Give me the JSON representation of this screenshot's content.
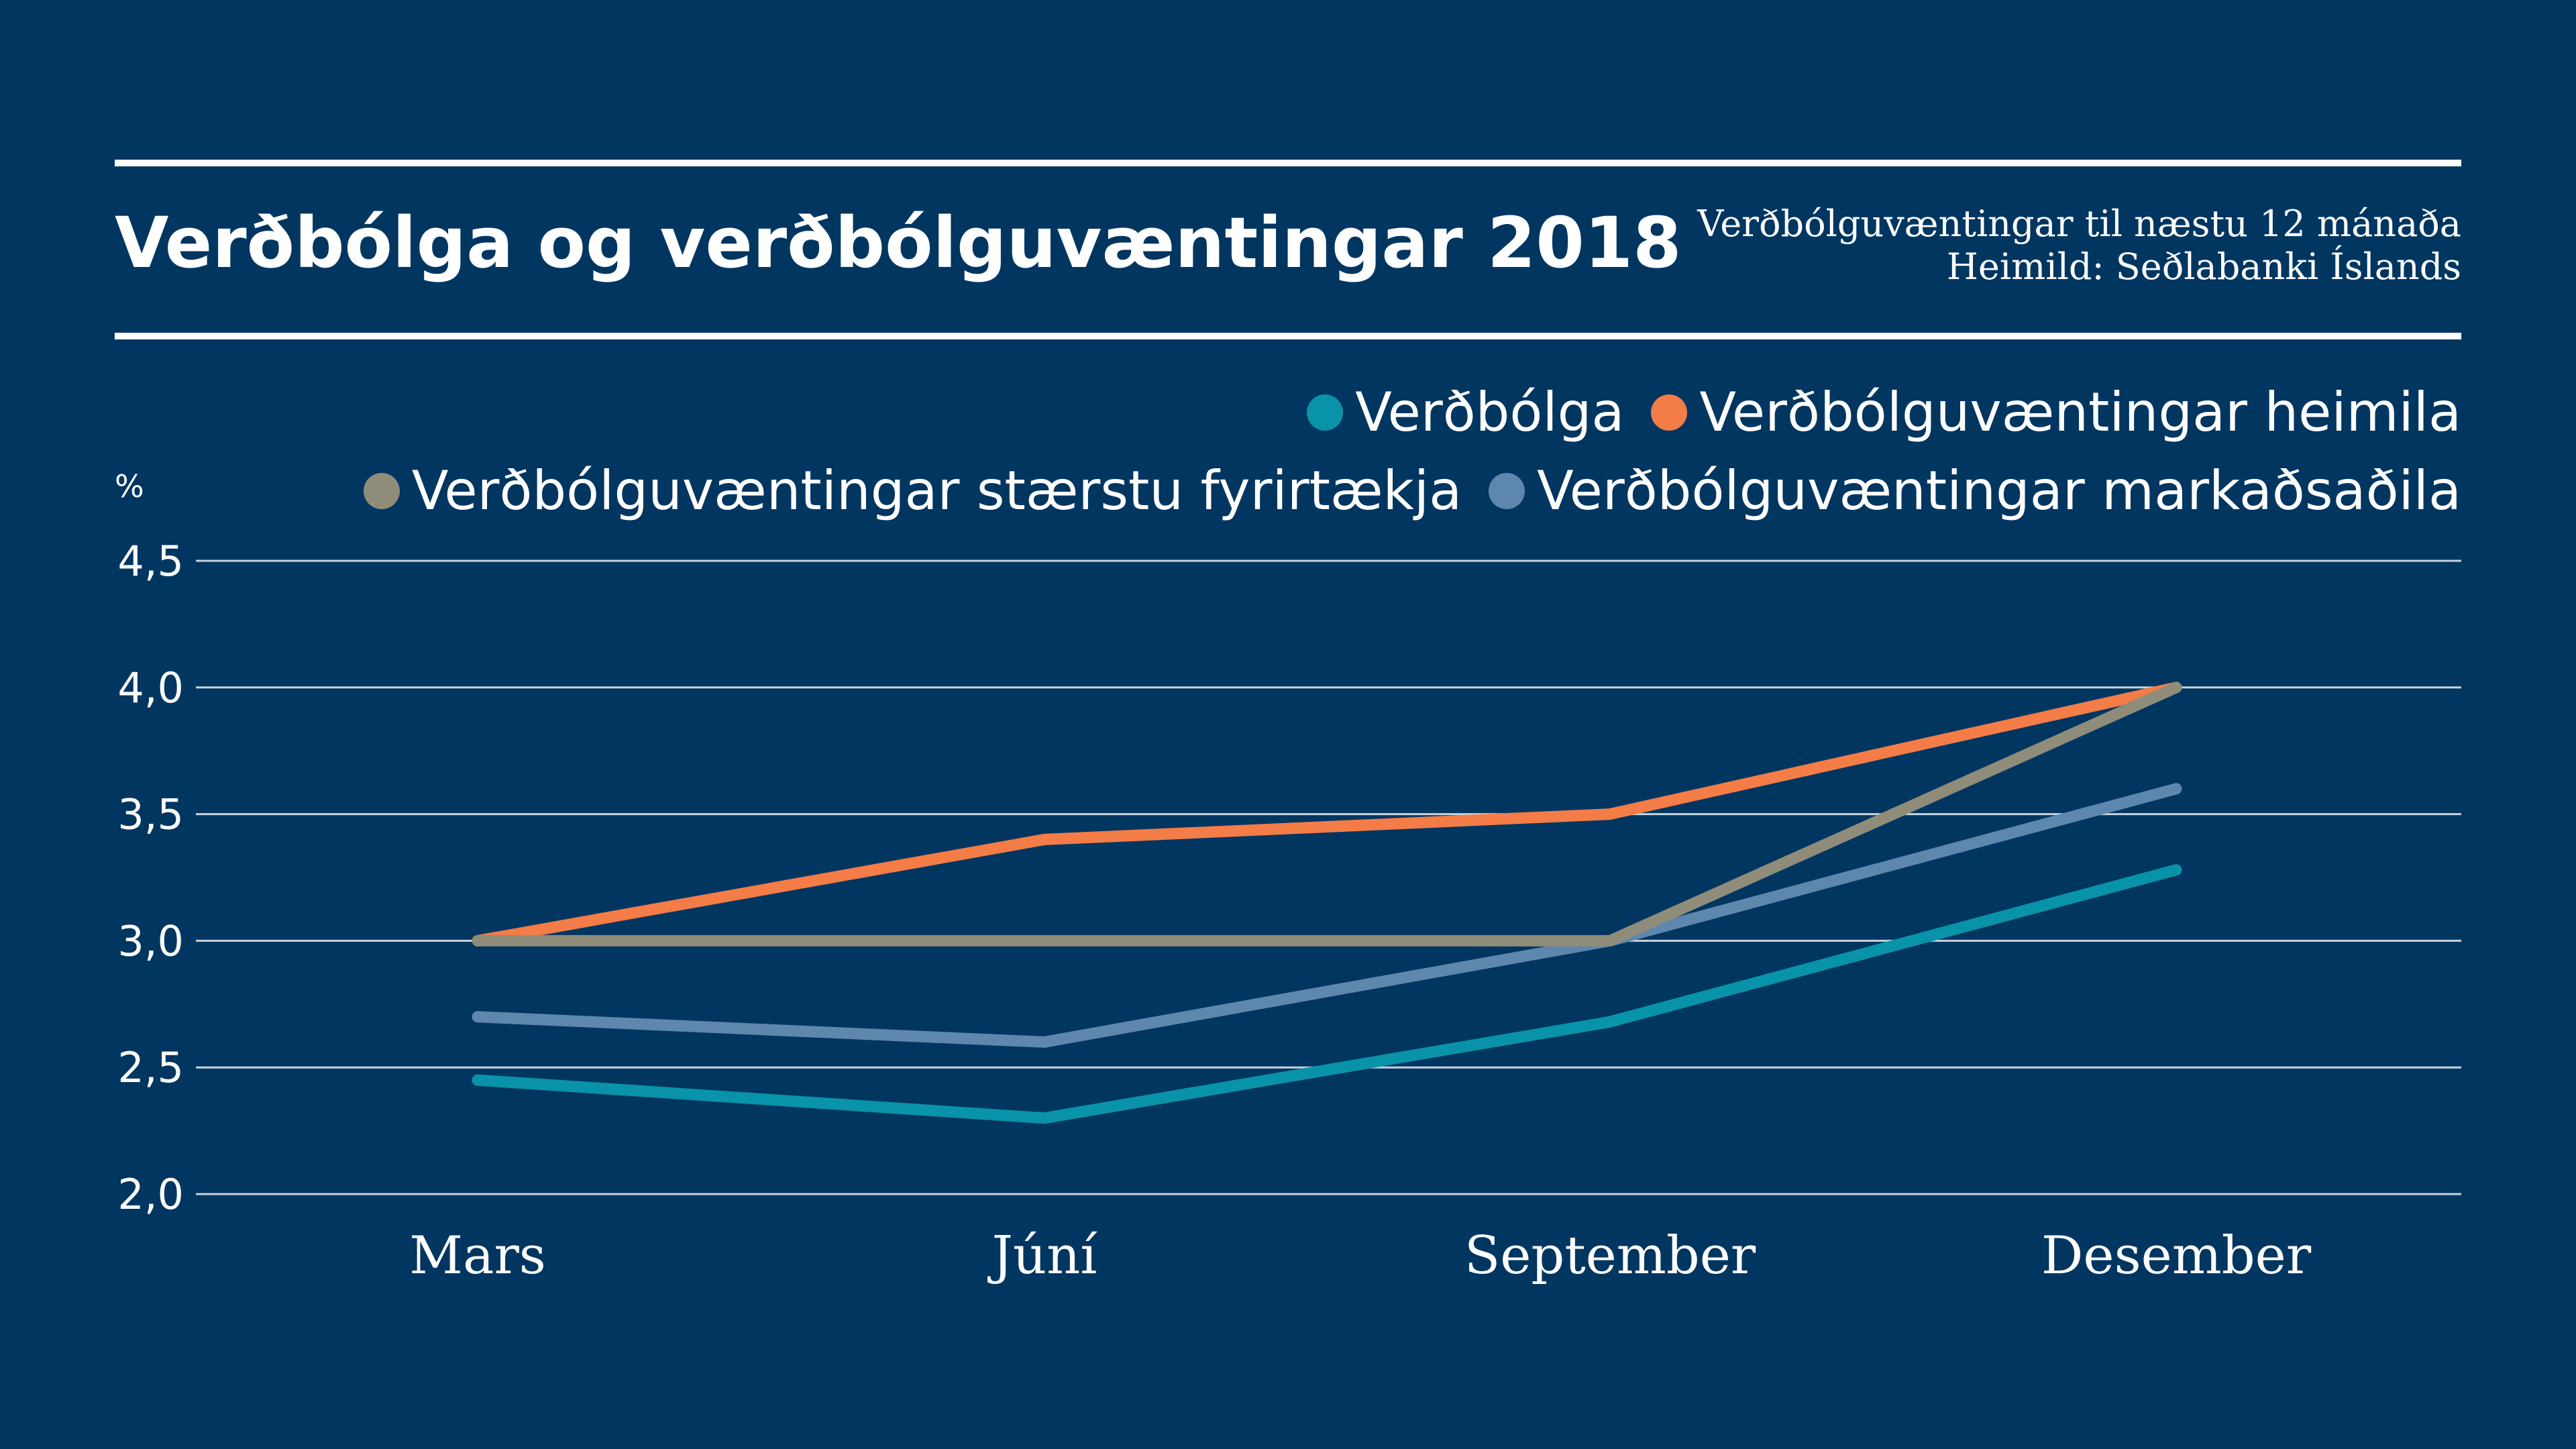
{
  "header": {
    "title": "Verðbólga og verðbólguvæntingar 2018",
    "note_line1": "Verðbólguvæntingar til næstu 12 mánaða",
    "note_line2": "Heimild: Seðlabanki Íslands"
  },
  "colors": {
    "background": "#013661",
    "grid": "#c9d3de"
  },
  "chart_data": {
    "type": "line",
    "title": "Verðbólga og verðbólguvæntingar 2018",
    "ylabel": "%",
    "xlabel": "",
    "categories": [
      "Mars",
      "Júní",
      "September",
      "Desember"
    ],
    "ylim": [
      2.0,
      4.5
    ],
    "yticks": [
      2.0,
      2.5,
      3.0,
      3.5,
      4.0,
      4.5
    ],
    "ytick_labels": [
      "2,0",
      "2,5",
      "3,0",
      "3,5",
      "4,0",
      "4,5"
    ],
    "grid": true,
    "legend_position": "top-right",
    "series": [
      {
        "name": "Verðbólga",
        "color": "#0993a8",
        "values": [
          2.45,
          2.3,
          2.68,
          3.28
        ]
      },
      {
        "name": "Verðbólguvæntingar heimila",
        "color": "#f47c47",
        "values": [
          3.0,
          3.4,
          3.5,
          4.0
        ]
      },
      {
        "name": "Verðbólguvæntingar stærstu fyrirtækja",
        "color": "#8f8c7a",
        "values": [
          3.0,
          3.0,
          3.0,
          4.0
        ]
      },
      {
        "name": "Verðbólguvæntingar markaðsaðila",
        "color": "#5e87ae",
        "values": [
          2.7,
          2.6,
          3.0,
          3.6
        ]
      }
    ]
  }
}
